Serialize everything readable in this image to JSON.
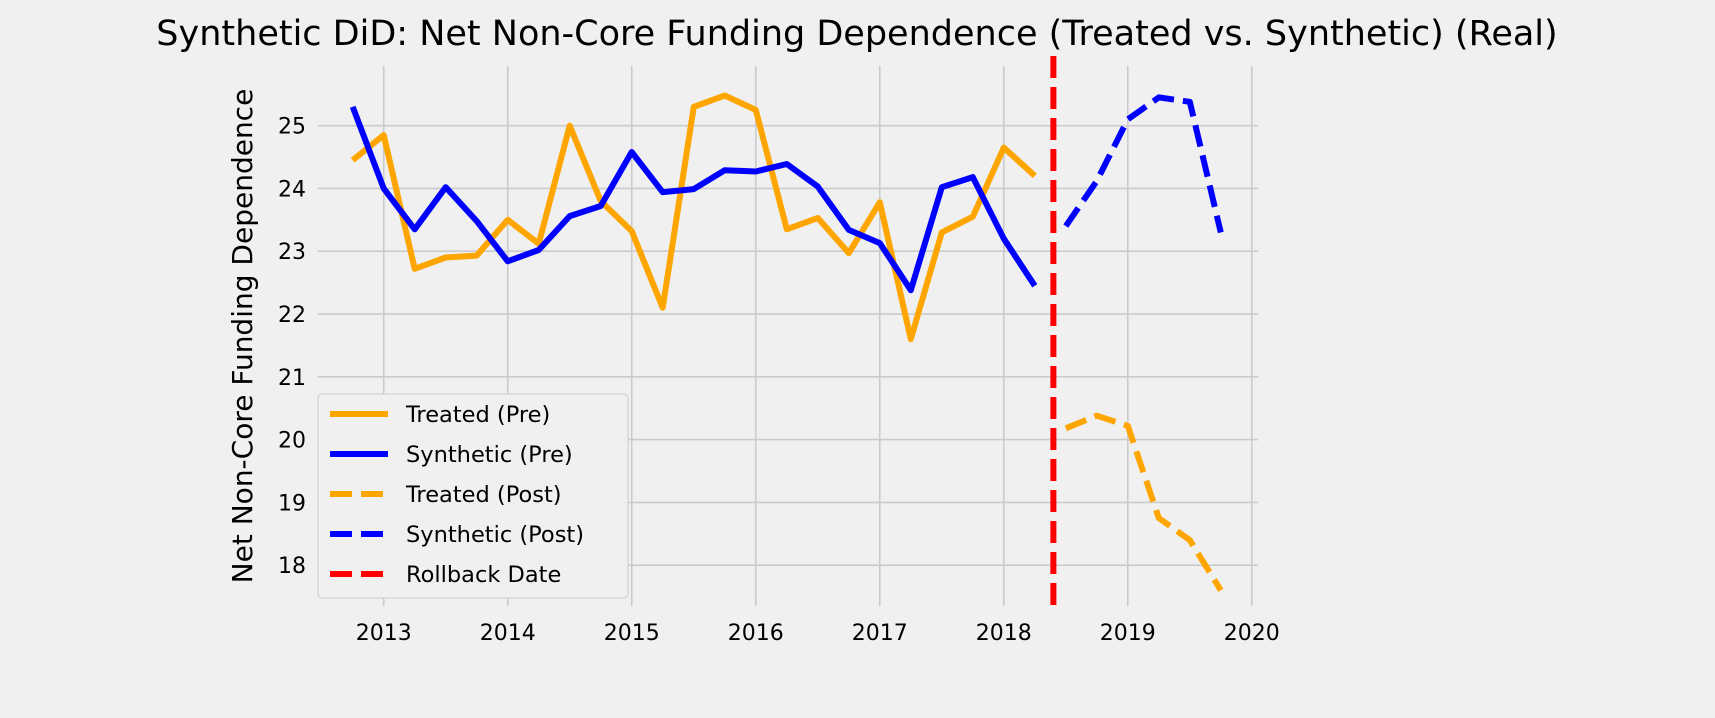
{
  "chart_data": {
    "type": "line",
    "title": "Synthetic DiD: Net Non-Core Funding Dependence (Treated vs. Synthetic) (Real)",
    "xlabel": "",
    "ylabel": "Net Non-Core Funding Dependence",
    "xlim": [
      2012.47,
      2020.05
    ],
    "ylim": [
      17.35,
      25.95
    ],
    "xticks": [
      2013,
      2014,
      2015,
      2016,
      2017,
      2018,
      2019,
      2020
    ],
    "yticks": [
      18,
      19,
      20,
      21,
      22,
      23,
      24,
      25
    ],
    "grid": true,
    "legend_position": "lower-left",
    "colors": {
      "treated": "#FFA500",
      "synthetic": "#0000FF",
      "rollback": "#FF0000",
      "grid": "#cbcbcb",
      "background": "#f0f0f0"
    },
    "series": [
      {
        "name": "Treated (Pre)",
        "color": "#FFA500",
        "style": "solid",
        "x": [
          2012.75,
          2013.0,
          2013.25,
          2013.5,
          2013.75,
          2014.0,
          2014.25,
          2014.5,
          2014.75,
          2015.0,
          2015.25,
          2015.5,
          2015.75,
          2016.0,
          2016.25,
          2016.5,
          2016.75,
          2017.0,
          2017.25,
          2017.5,
          2017.75,
          2018.0,
          2018.25
        ],
        "y": [
          24.45,
          24.85,
          22.72,
          22.9,
          22.93,
          23.5,
          23.12,
          25.0,
          23.8,
          23.32,
          22.1,
          25.3,
          25.48,
          25.25,
          23.35,
          23.53,
          22.97,
          23.78,
          21.6,
          23.3,
          23.55,
          24.65,
          24.2
        ]
      },
      {
        "name": "Synthetic (Pre)",
        "color": "#0000FF",
        "style": "solid",
        "x": [
          2012.75,
          2013.0,
          2013.25,
          2013.5,
          2013.75,
          2014.0,
          2014.25,
          2014.5,
          2014.75,
          2015.0,
          2015.25,
          2015.5,
          2015.75,
          2016.0,
          2016.25,
          2016.5,
          2016.75,
          2017.0,
          2017.25,
          2017.5,
          2017.75,
          2018.0,
          2018.25
        ],
        "y": [
          25.3,
          24.0,
          23.35,
          24.02,
          23.48,
          22.84,
          23.02,
          23.56,
          23.72,
          24.58,
          23.94,
          23.99,
          24.29,
          24.27,
          24.39,
          24.03,
          23.34,
          23.13,
          22.38,
          24.02,
          24.18,
          23.2,
          22.45
        ]
      },
      {
        "name": "Treated (Post)",
        "color": "#FFA500",
        "style": "dashed",
        "x": [
          2018.5,
          2018.75,
          2019.0,
          2019.25,
          2019.5,
          2019.75
        ],
        "y": [
          20.18,
          20.38,
          20.22,
          18.75,
          18.4,
          17.6
        ]
      },
      {
        "name": "Synthetic (Post)",
        "color": "#0000FF",
        "style": "dashed",
        "x": [
          2018.5,
          2018.75,
          2019.0,
          2019.25,
          2019.5,
          2019.75
        ],
        "y": [
          23.4,
          24.12,
          25.1,
          25.45,
          25.38,
          23.3
        ]
      }
    ],
    "annotations": [
      {
        "name": "Rollback Date",
        "type": "vline",
        "x": 2018.4,
        "color": "#FF0000",
        "style": "dashed"
      }
    ]
  }
}
